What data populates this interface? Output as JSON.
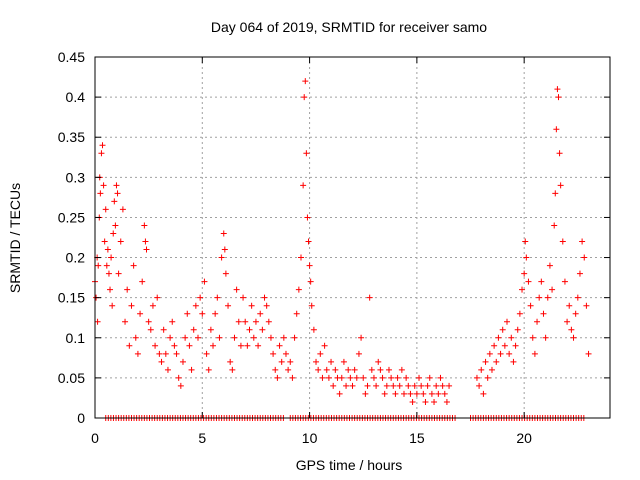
{
  "chart_data": {
    "type": "scatter",
    "title": "Day 064 of 2019, SRMTID for receiver samo",
    "xlabel": "GPS time / hours",
    "ylabel": "SRMTID / TECUs",
    "xlim": [
      0,
      24
    ],
    "ylim": [
      0,
      0.45
    ],
    "xticks": [
      0,
      5,
      10,
      15,
      20
    ],
    "xtick_labels": [
      "0",
      "5",
      "10",
      "15",
      "20"
    ],
    "yticks": [
      0,
      0.05,
      0.1,
      0.15,
      0.2,
      0.25,
      0.3,
      0.35,
      0.4,
      0.45
    ],
    "ytick_labels": [
      "0",
      "0.05",
      "0.1",
      "0.15",
      "0.2",
      "0.25",
      "0.3",
      "0.35",
      "0.4",
      "0.45"
    ],
    "grid": true,
    "marker": "+",
    "color": "#ff0000",
    "series": [
      {
        "name": "SRMTID",
        "points": [
          [
            0.0,
            0.17
          ],
          [
            0.05,
            0.15
          ],
          [
            0.1,
            0.2
          ],
          [
            0.12,
            0.12
          ],
          [
            0.15,
            0.19
          ],
          [
            0.2,
            0.25
          ],
          [
            0.22,
            0.3
          ],
          [
            0.25,
            0.28
          ],
          [
            0.3,
            0.33
          ],
          [
            0.35,
            0.34
          ],
          [
            0.4,
            0.29
          ],
          [
            0.45,
            0.22
          ],
          [
            0.5,
            0.26
          ],
          [
            0.55,
            0.19
          ],
          [
            0.6,
            0.21
          ],
          [
            0.65,
            0.18
          ],
          [
            0.7,
            0.16
          ],
          [
            0.75,
            0.2
          ],
          [
            0.8,
            0.14
          ],
          [
            0.85,
            0.23
          ],
          [
            0.9,
            0.27
          ],
          [
            0.95,
            0.24
          ],
          [
            1.0,
            0.29
          ],
          [
            1.05,
            0.28
          ],
          [
            1.1,
            0.18
          ],
          [
            1.2,
            0.22
          ],
          [
            1.3,
            0.26
          ],
          [
            1.4,
            0.12
          ],
          [
            1.5,
            0.16
          ],
          [
            1.6,
            0.09
          ],
          [
            1.7,
            0.14
          ],
          [
            1.8,
            0.19
          ],
          [
            1.9,
            0.1
          ],
          [
            2.0,
            0.08
          ],
          [
            2.1,
            0.13
          ],
          [
            2.2,
            0.17
          ],
          [
            2.3,
            0.24
          ],
          [
            2.35,
            0.22
          ],
          [
            2.4,
            0.21
          ],
          [
            2.5,
            0.12
          ],
          [
            2.6,
            0.11
          ],
          [
            2.7,
            0.14
          ],
          [
            2.8,
            0.09
          ],
          [
            2.9,
            0.15
          ],
          [
            3.0,
            0.08
          ],
          [
            3.1,
            0.07
          ],
          [
            3.2,
            0.11
          ],
          [
            3.3,
            0.08
          ],
          [
            3.4,
            0.06
          ],
          [
            3.5,
            0.1
          ],
          [
            3.6,
            0.12
          ],
          [
            3.7,
            0.09
          ],
          [
            3.8,
            0.08
          ],
          [
            3.9,
            0.05
          ],
          [
            4.0,
            0.04
          ],
          [
            4.1,
            0.07
          ],
          [
            4.2,
            0.1
          ],
          [
            4.3,
            0.13
          ],
          [
            4.4,
            0.09
          ],
          [
            4.5,
            0.06
          ],
          [
            4.6,
            0.11
          ],
          [
            4.7,
            0.14
          ],
          [
            4.8,
            0.1
          ],
          [
            4.9,
            0.15
          ],
          [
            5.0,
            0.13
          ],
          [
            5.1,
            0.17
          ],
          [
            5.2,
            0.08
          ],
          [
            5.3,
            0.06
          ],
          [
            5.4,
            0.11
          ],
          [
            5.5,
            0.09
          ],
          [
            5.6,
            0.13
          ],
          [
            5.7,
            0.15
          ],
          [
            5.8,
            0.1
          ],
          [
            5.9,
            0.2
          ],
          [
            6.0,
            0.23
          ],
          [
            6.05,
            0.21
          ],
          [
            6.1,
            0.18
          ],
          [
            6.2,
            0.14
          ],
          [
            6.3,
            0.07
          ],
          [
            6.4,
            0.06
          ],
          [
            6.5,
            0.1
          ],
          [
            6.6,
            0.16
          ],
          [
            6.7,
            0.12
          ],
          [
            6.8,
            0.09
          ],
          [
            6.9,
            0.15
          ],
          [
            7.0,
            0.12
          ],
          [
            7.1,
            0.09
          ],
          [
            7.2,
            0.11
          ],
          [
            7.3,
            0.14
          ],
          [
            7.4,
            0.1
          ],
          [
            7.5,
            0.12
          ],
          [
            7.6,
            0.09
          ],
          [
            7.7,
            0.13
          ],
          [
            7.8,
            0.11
          ],
          [
            7.9,
            0.15
          ],
          [
            8.0,
            0.14
          ],
          [
            8.1,
            0.12
          ],
          [
            8.2,
            0.1
          ],
          [
            8.3,
            0.08
          ],
          [
            8.4,
            0.06
          ],
          [
            8.5,
            0.05
          ],
          [
            8.6,
            0.09
          ],
          [
            8.7,
            0.07
          ],
          [
            8.8,
            0.1
          ],
          [
            8.9,
            0.08
          ],
          [
            9.0,
            0.06
          ],
          [
            9.1,
            0.07
          ],
          [
            9.2,
            0.05
          ],
          [
            9.3,
            0.1
          ],
          [
            9.4,
            0.13
          ],
          [
            9.5,
            0.16
          ],
          [
            9.6,
            0.2
          ],
          [
            9.7,
            0.29
          ],
          [
            9.75,
            0.4
          ],
          [
            9.8,
            0.42
          ],
          [
            9.85,
            0.33
          ],
          [
            9.9,
            0.25
          ],
          [
            9.95,
            0.22
          ],
          [
            10.0,
            0.19
          ],
          [
            10.05,
            0.17
          ],
          [
            10.1,
            0.14
          ],
          [
            10.2,
            0.11
          ],
          [
            10.3,
            0.07
          ],
          [
            10.4,
            0.06
          ],
          [
            10.5,
            0.08
          ],
          [
            10.6,
            0.05
          ],
          [
            10.7,
            0.09
          ],
          [
            10.8,
            0.06
          ],
          [
            10.9,
            0.05
          ],
          [
            11.0,
            0.07
          ],
          [
            11.1,
            0.04
          ],
          [
            11.2,
            0.06
          ],
          [
            11.3,
            0.05
          ],
          [
            11.4,
            0.03
          ],
          [
            11.5,
            0.05
          ],
          [
            11.6,
            0.07
          ],
          [
            11.7,
            0.04
          ],
          [
            11.8,
            0.06
          ],
          [
            11.9,
            0.05
          ],
          [
            12.0,
            0.04
          ],
          [
            12.1,
            0.06
          ],
          [
            12.2,
            0.05
          ],
          [
            12.3,
            0.08
          ],
          [
            12.4,
            0.1
          ],
          [
            12.5,
            0.05
          ],
          [
            12.6,
            0.03
          ],
          [
            12.7,
            0.04
          ],
          [
            12.8,
            0.15
          ],
          [
            12.9,
            0.06
          ],
          [
            13.0,
            0.05
          ],
          [
            13.1,
            0.04
          ],
          [
            13.2,
            0.07
          ],
          [
            13.3,
            0.06
          ],
          [
            13.4,
            0.05
          ],
          [
            13.5,
            0.03
          ],
          [
            13.6,
            0.04
          ],
          [
            13.7,
            0.06
          ],
          [
            13.8,
            0.05
          ],
          [
            13.9,
            0.04
          ],
          [
            14.0,
            0.03
          ],
          [
            14.1,
            0.05
          ],
          [
            14.2,
            0.04
          ],
          [
            14.3,
            0.06
          ],
          [
            14.4,
            0.03
          ],
          [
            14.5,
            0.05
          ],
          [
            14.6,
            0.04
          ],
          [
            14.7,
            0.03
          ],
          [
            14.8,
            0.02
          ],
          [
            14.9,
            0.04
          ],
          [
            15.0,
            0.03
          ],
          [
            15.1,
            0.05
          ],
          [
            15.2,
            0.04
          ],
          [
            15.3,
            0.03
          ],
          [
            15.4,
            0.02
          ],
          [
            15.5,
            0.04
          ],
          [
            15.6,
            0.05
          ],
          [
            15.7,
            0.03
          ],
          [
            15.8,
            0.02
          ],
          [
            15.9,
            0.04
          ],
          [
            16.0,
            0.03
          ],
          [
            16.1,
            0.05
          ],
          [
            16.2,
            0.04
          ],
          [
            16.3,
            0.03
          ],
          [
            16.4,
            0.02
          ],
          [
            16.5,
            0.04
          ],
          [
            17.8,
            0.05
          ],
          [
            17.9,
            0.04
          ],
          [
            18.0,
            0.06
          ],
          [
            18.1,
            0.03
          ],
          [
            18.2,
            0.07
          ],
          [
            18.3,
            0.05
          ],
          [
            18.4,
            0.08
          ],
          [
            18.5,
            0.06
          ],
          [
            18.6,
            0.09
          ],
          [
            18.7,
            0.07
          ],
          [
            18.8,
            0.1
          ],
          [
            18.9,
            0.08
          ],
          [
            19.0,
            0.11
          ],
          [
            19.1,
            0.09
          ],
          [
            19.2,
            0.12
          ],
          [
            19.3,
            0.08
          ],
          [
            19.4,
            0.1
          ],
          [
            19.5,
            0.07
          ],
          [
            19.6,
            0.09
          ],
          [
            19.7,
            0.11
          ],
          [
            19.8,
            0.13
          ],
          [
            19.9,
            0.16
          ],
          [
            20.0,
            0.18
          ],
          [
            20.05,
            0.22
          ],
          [
            20.1,
            0.2
          ],
          [
            20.2,
            0.17
          ],
          [
            20.3,
            0.14
          ],
          [
            20.4,
            0.1
          ],
          [
            20.5,
            0.08
          ],
          [
            20.6,
            0.12
          ],
          [
            20.7,
            0.15
          ],
          [
            20.8,
            0.17
          ],
          [
            20.9,
            0.13
          ],
          [
            21.0,
            0.1
          ],
          [
            21.1,
            0.15
          ],
          [
            21.2,
            0.19
          ],
          [
            21.3,
            0.16
          ],
          [
            21.4,
            0.24
          ],
          [
            21.45,
            0.28
          ],
          [
            21.5,
            0.36
          ],
          [
            21.55,
            0.41
          ],
          [
            21.6,
            0.4
          ],
          [
            21.65,
            0.33
          ],
          [
            21.7,
            0.29
          ],
          [
            21.8,
            0.22
          ],
          [
            21.9,
            0.17
          ],
          [
            22.0,
            0.12
          ],
          [
            22.1,
            0.14
          ],
          [
            22.2,
            0.11
          ],
          [
            22.3,
            0.1
          ],
          [
            22.4,
            0.13
          ],
          [
            22.5,
            0.15
          ],
          [
            22.6,
            0.18
          ],
          [
            22.7,
            0.22
          ],
          [
            22.8,
            0.2
          ],
          [
            22.9,
            0.14
          ],
          [
            23.0,
            0.08
          ]
        ]
      }
    ],
    "zero_runs": [
      [
        0.5,
        8.8
      ],
      [
        9.1,
        16.8
      ],
      [
        17.5,
        22.8
      ]
    ]
  }
}
